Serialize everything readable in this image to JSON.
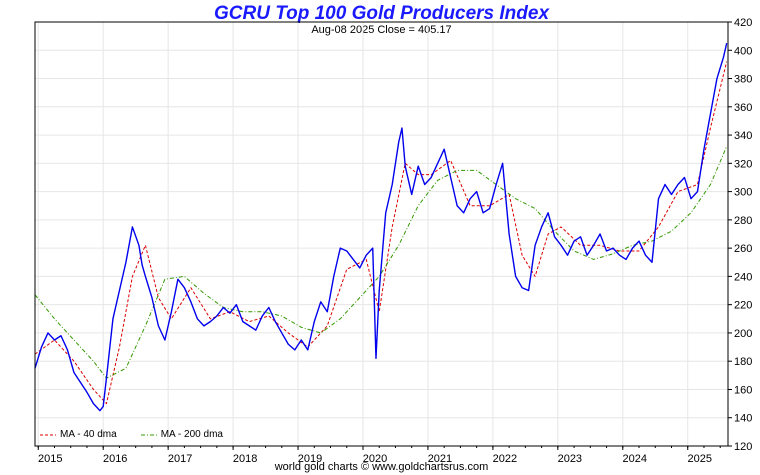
{
  "chart_data": {
    "type": "line",
    "title": "GCRU Top 100 Gold Producers Index",
    "subtitle": "Aug-08  2025   Close = 405.17",
    "credit": "world gold charts © www.goldchartsrus.com",
    "xlabel": "",
    "ylabel": "",
    "x_ticks": [
      "2015",
      "2016",
      "2017",
      "2018",
      "2019",
      "2020",
      "2021",
      "2022",
      "2023",
      "2024",
      "2025"
    ],
    "xlim": [
      2014.95,
      2025.62
    ],
    "ylim": [
      120,
      420
    ],
    "y_ticks": [
      120,
      140,
      160,
      180,
      200,
      220,
      240,
      260,
      280,
      300,
      320,
      340,
      360,
      380,
      400,
      420
    ],
    "grid": true,
    "legend_position": "bottom-left",
    "series": [
      {
        "name": "",
        "color": "#0000ee",
        "style": "solid",
        "x": [
          2014.95,
          2015.05,
          2015.15,
          2015.25,
          2015.35,
          2015.45,
          2015.55,
          2015.65,
          2015.75,
          2015.85,
          2015.95,
          2016.0,
          2016.05,
          2016.15,
          2016.25,
          2016.35,
          2016.45,
          2016.55,
          2016.6,
          2016.65,
          2016.75,
          2016.85,
          2016.95,
          2017.05,
          2017.15,
          2017.25,
          2017.35,
          2017.45,
          2017.55,
          2017.65,
          2017.75,
          2017.85,
          2017.95,
          2018.05,
          2018.15,
          2018.25,
          2018.35,
          2018.45,
          2018.55,
          2018.65,
          2018.75,
          2018.85,
          2018.95,
          2019.05,
          2019.15,
          2019.25,
          2019.35,
          2019.45,
          2019.55,
          2019.65,
          2019.75,
          2019.85,
          2019.95,
          2020.05,
          2020.15,
          2020.2,
          2020.25,
          2020.35,
          2020.45,
          2020.55,
          2020.6,
          2020.65,
          2020.75,
          2020.85,
          2020.95,
          2021.05,
          2021.15,
          2021.25,
          2021.35,
          2021.45,
          2021.55,
          2021.65,
          2021.75,
          2021.85,
          2021.95,
          2022.05,
          2022.15,
          2022.25,
          2022.35,
          2022.45,
          2022.55,
          2022.65,
          2022.75,
          2022.85,
          2022.95,
          2023.05,
          2023.15,
          2023.25,
          2023.35,
          2023.45,
          2023.55,
          2023.65,
          2023.75,
          2023.85,
          2023.95,
          2024.05,
          2024.15,
          2024.25,
          2024.35,
          2024.45,
          2024.55,
          2024.65,
          2024.75,
          2024.85,
          2024.95,
          2025.05,
          2025.15,
          2025.25,
          2025.35,
          2025.45,
          2025.55,
          2025.6
        ],
        "values": [
          175,
          190,
          200,
          195,
          198,
          188,
          172,
          165,
          158,
          150,
          145,
          148,
          168,
          210,
          230,
          250,
          275,
          262,
          248,
          240,
          225,
          205,
          195,
          215,
          238,
          232,
          222,
          210,
          205,
          208,
          212,
          218,
          214,
          220,
          208,
          205,
          202,
          212,
          218,
          208,
          200,
          192,
          188,
          195,
          188,
          208,
          222,
          215,
          240,
          260,
          258,
          252,
          246,
          255,
          260,
          182,
          230,
          285,
          305,
          335,
          345,
          318,
          298,
          318,
          305,
          310,
          320,
          330,
          310,
          290,
          285,
          295,
          300,
          285,
          288,
          305,
          320,
          270,
          240,
          232,
          230,
          262,
          275,
          285,
          268,
          262,
          255,
          265,
          268,
          255,
          262,
          270,
          258,
          260,
          255,
          252,
          260,
          265,
          255,
          250,
          295,
          305,
          298,
          305,
          310,
          295,
          300,
          330,
          355,
          380,
          395,
          405
        ]
      },
      {
        "name": "MA - 40 dma",
        "color": "#dd0000",
        "style": "dashed",
        "x": [
          2014.95,
          2015.25,
          2015.55,
          2015.85,
          2016.05,
          2016.25,
          2016.45,
          2016.65,
          2016.85,
          2017.05,
          2017.35,
          2017.65,
          2017.95,
          2018.25,
          2018.55,
          2018.85,
          2019.15,
          2019.45,
          2019.75,
          2020.05,
          2020.25,
          2020.45,
          2020.65,
          2020.85,
          2021.05,
          2021.35,
          2021.65,
          2021.95,
          2022.25,
          2022.45,
          2022.65,
          2022.85,
          2023.05,
          2023.35,
          2023.65,
          2023.95,
          2024.25,
          2024.55,
          2024.85,
          2025.15,
          2025.35,
          2025.6
        ],
        "values": [
          185,
          195,
          180,
          160,
          150,
          190,
          240,
          262,
          225,
          210,
          232,
          210,
          215,
          208,
          212,
          200,
          190,
          205,
          245,
          252,
          215,
          275,
          320,
          312,
          312,
          322,
          290,
          290,
          298,
          255,
          240,
          270,
          275,
          262,
          262,
          258,
          258,
          275,
          300,
          305,
          345,
          392
        ]
      },
      {
        "name": "MA - 200 dma",
        "color": "#339900",
        "style": "dashdot",
        "x": [
          2014.95,
          2015.25,
          2015.55,
          2015.85,
          2016.05,
          2016.35,
          2016.65,
          2016.95,
          2017.25,
          2017.55,
          2017.85,
          2018.15,
          2018.45,
          2018.75,
          2019.05,
          2019.35,
          2019.65,
          2019.95,
          2020.25,
          2020.55,
          2020.85,
          2021.15,
          2021.45,
          2021.75,
          2022.05,
          2022.35,
          2022.65,
          2022.95,
          2023.25,
          2023.55,
          2023.85,
          2024.15,
          2024.45,
          2024.75,
          2025.05,
          2025.35,
          2025.6
        ],
        "values": [
          227,
          210,
          195,
          180,
          168,
          175,
          205,
          238,
          240,
          228,
          218,
          215,
          215,
          212,
          204,
          200,
          210,
          225,
          240,
          262,
          290,
          308,
          315,
          315,
          305,
          295,
          288,
          272,
          258,
          252,
          256,
          262,
          265,
          272,
          285,
          305,
          332
        ]
      }
    ]
  }
}
